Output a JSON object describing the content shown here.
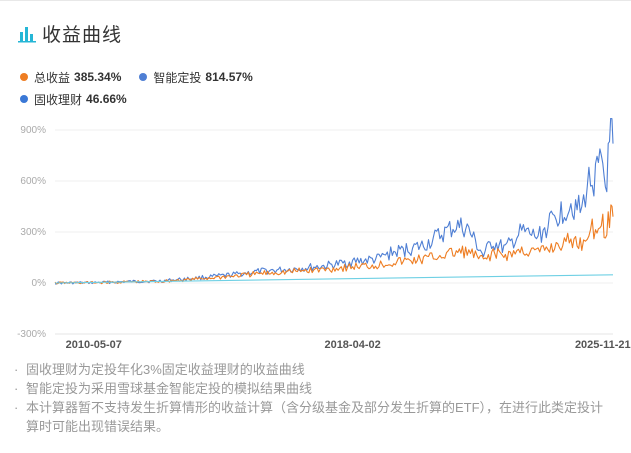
{
  "header": {
    "title": "收益曲线",
    "icon": "bar-chart-icon"
  },
  "legend": [
    {
      "name": "总收益",
      "value": "385.34%",
      "color": "#ee7d22"
    },
    {
      "name": "智能定投",
      "value": "814.57%",
      "color": "#4f7fd4"
    },
    {
      "name": "固收理财",
      "value": "46.66%",
      "color": "#3a78d6"
    }
  ],
  "chart_data": {
    "type": "line",
    "x_ticks": [
      "2010-05-07",
      "2018-04-02",
      "2025-11-21"
    ],
    "x_range": [
      "2009-03-01",
      "2026-03-15"
    ],
    "y_ticks": [
      "900%",
      "600%",
      "300%",
      "0%",
      "-300%"
    ],
    "ylim": [
      -300,
      900
    ],
    "grid": true,
    "series": [
      {
        "name": "智能定投",
        "color": "#4f7fd4",
        "points": [
          [
            "2009-03-01",
            0
          ],
          [
            "2010-05-07",
            2
          ],
          [
            "2011-06-01",
            8
          ],
          [
            "2012-06-01",
            12
          ],
          [
            "2013-06-01",
            28
          ],
          [
            "2014-06-01",
            45
          ],
          [
            "2015-06-01",
            68
          ],
          [
            "2016-06-01",
            82
          ],
          [
            "2017-06-01",
            100
          ],
          [
            "2018-04-02",
            125
          ],
          [
            "2019-01-01",
            140
          ],
          [
            "2019-06-01",
            175
          ],
          [
            "2020-06-01",
            220
          ],
          [
            "2020-12-01",
            280
          ],
          [
            "2021-06-01",
            335
          ],
          [
            "2021-10-01",
            320
          ],
          [
            "2022-04-01",
            160
          ],
          [
            "2022-07-01",
            240
          ],
          [
            "2022-12-01",
            200
          ],
          [
            "2023-06-01",
            300
          ],
          [
            "2023-12-01",
            270
          ],
          [
            "2024-06-01",
            380
          ],
          [
            "2024-12-01",
            470
          ],
          [
            "2025-04-01",
            420
          ],
          [
            "2025-06-01",
            580
          ],
          [
            "2025-09-01",
            630
          ],
          [
            "2025-11-21",
            690
          ],
          [
            "2025-12-20",
            560
          ],
          [
            "2026-01-20",
            700
          ],
          [
            "2026-02-20",
            850
          ],
          [
            "2026-03-15",
            820
          ]
        ]
      },
      {
        "name": "总收益",
        "color": "#ee7d22",
        "points": [
          [
            "2009-03-01",
            0
          ],
          [
            "2010-05-07",
            2
          ],
          [
            "2011-06-01",
            6
          ],
          [
            "2012-06-01",
            10
          ],
          [
            "2013-06-01",
            22
          ],
          [
            "2014-06-01",
            38
          ],
          [
            "2015-06-01",
            55
          ],
          [
            "2016-06-01",
            68
          ],
          [
            "2017-06-01",
            80
          ],
          [
            "2018-04-02",
            95
          ],
          [
            "2019-01-01",
            105
          ],
          [
            "2019-06-01",
            120
          ],
          [
            "2020-06-01",
            140
          ],
          [
            "2020-12-01",
            160
          ],
          [
            "2021-06-01",
            180
          ],
          [
            "2021-10-01",
            185
          ],
          [
            "2022-04-01",
            130
          ],
          [
            "2022-07-01",
            175
          ],
          [
            "2022-12-01",
            160
          ],
          [
            "2023-06-01",
            190
          ],
          [
            "2023-12-01",
            180
          ],
          [
            "2024-06-01",
            215
          ],
          [
            "2024-12-01",
            250
          ],
          [
            "2025-04-01",
            230
          ],
          [
            "2025-06-01",
            300
          ],
          [
            "2025-09-01",
            325
          ],
          [
            "2025-11-21",
            350
          ],
          [
            "2025-12-20",
            300
          ],
          [
            "2026-01-20",
            350
          ],
          [
            "2026-02-20",
            415
          ],
          [
            "2026-03-15",
            390
          ]
        ]
      },
      {
        "name": "固收理财",
        "color": "#6fd0e4",
        "points": [
          [
            "2009-03-01",
            0
          ],
          [
            "2026-03-15",
            48
          ]
        ]
      }
    ]
  },
  "notes": [
    "固收理财为定投年化3%固定收益理财的收益曲线",
    "智能定投为采用雪球基金智能定投的模拟结果曲线",
    "本计算器暂不支持发生折算情形的收益计算（含分级基金及部分发生折算的ETF），在进行此类定投计算时可能出现错误结果。"
  ]
}
